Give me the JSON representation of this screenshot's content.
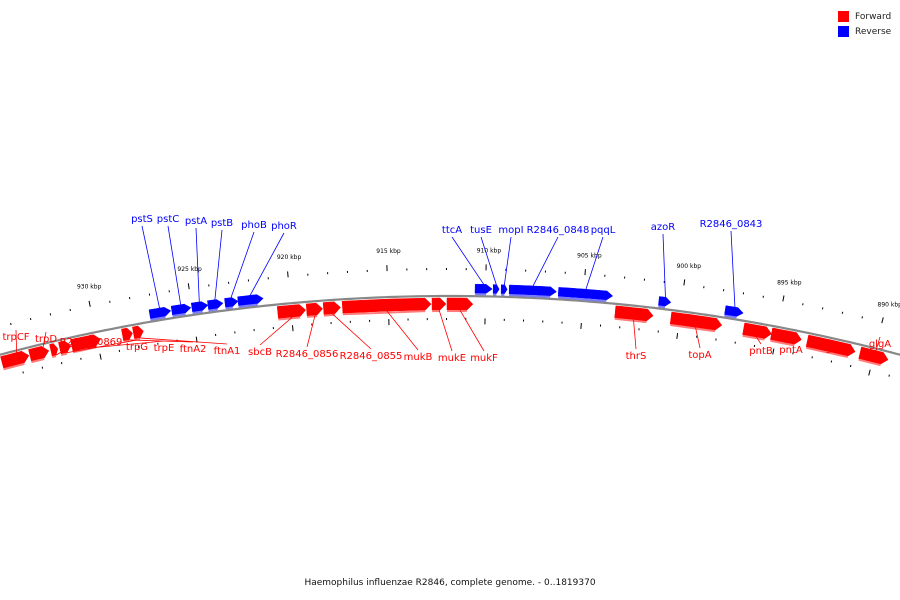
{
  "legend": [
    {
      "label": "Forward",
      "color": "#ff0000"
    },
    {
      "label": "Reverse",
      "color": "#0000ff"
    }
  ],
  "caption": "Haemophilus influenzae R2846, complete genome. - 0..1819370",
  "colors": {
    "forward": "#ff0000",
    "reverse": "#0000ff",
    "backbone": "#888888",
    "tick": "#000000"
  },
  "ruler": {
    "major_labels": [
      "930 kbp",
      "925 kbp",
      "920 kbp",
      "915 kbp",
      "910 kbp",
      "905 kbp",
      "900 kbp",
      "895 kbp",
      "890 kbp"
    ]
  },
  "reverse_genes": [
    {
      "name": "pstS"
    },
    {
      "name": "pstC"
    },
    {
      "name": "pstA"
    },
    {
      "name": "pstB"
    },
    {
      "name": "phoB"
    },
    {
      "name": "phoR"
    },
    {
      "name": "ttcA"
    },
    {
      "name": "tusE"
    },
    {
      "name": "mopI"
    },
    {
      "name": "R2846_0848"
    },
    {
      "name": "pqqL"
    },
    {
      "name": "azoR"
    },
    {
      "name": "R2846_0843"
    }
  ],
  "forward_genes": [
    {
      "name": "trpCF"
    },
    {
      "name": "trpD"
    },
    {
      "name": "R2846_0869"
    },
    {
      "name": "trpG"
    },
    {
      "name": "trpE"
    },
    {
      "name": "ftnA2"
    },
    {
      "name": "ftnA1"
    },
    {
      "name": "sbcB"
    },
    {
      "name": "R2846_0856"
    },
    {
      "name": "R2846_0855"
    },
    {
      "name": "mukB"
    },
    {
      "name": "mukE"
    },
    {
      "name": "mukF"
    },
    {
      "name": "thrS"
    },
    {
      "name": "topA"
    },
    {
      "name": "pntB"
    },
    {
      "name": "pntA"
    },
    {
      "name": "glgP"
    },
    {
      "name": "glgA"
    }
  ]
}
